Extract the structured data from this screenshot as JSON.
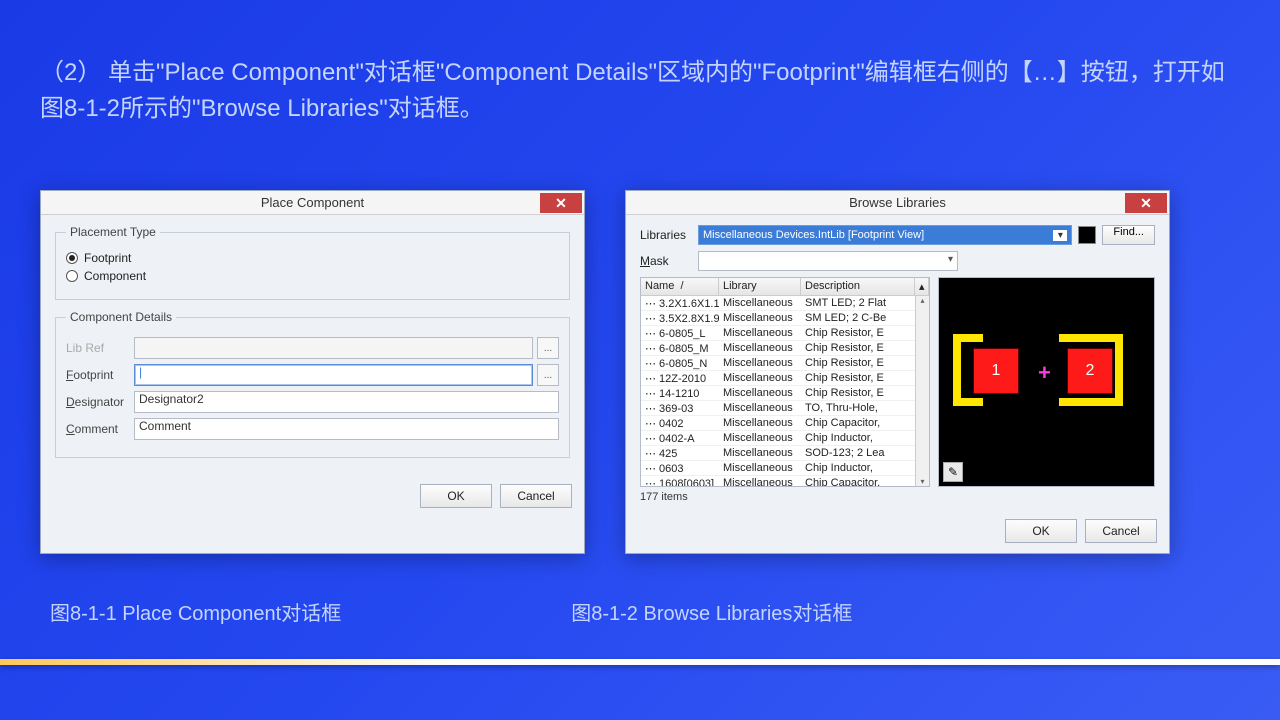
{
  "instruction": "（2） 单击\"Place Component\"对话框\"Component Details\"区域内的\"Footprint\"编辑框右侧的【…】按钮，打开如图8-1-2所示的\"Browse Libraries\"对话框。",
  "caption1": "图8-1-1  Place Component对话框",
  "caption2": "图8-1-2  Browse Libraries对话框",
  "dlg1": {
    "title": "Place Component",
    "fs1": "Placement Type",
    "r1": "Footprint",
    "r2": "Component",
    "fs2": "Component Details",
    "libref_l": "Lib Ref",
    "footprint_l": "Footprint",
    "designator_l": "Designator",
    "designator_v": "Designator2",
    "comment_l": "Comment",
    "comment_v": "Comment",
    "ell": "...",
    "ok": "OK",
    "cancel": "Cancel"
  },
  "dlg2": {
    "title": "Browse Libraries",
    "lib_l": "Libraries",
    "lib_sel": "Miscellaneous Devices.IntLib [Footprint View]",
    "find": "Find...",
    "mask_l": "Mask",
    "col_name": "Name",
    "col_lib": "Library",
    "col_desc": "Description",
    "rows": [
      {
        "n": "3.2X1.6X1.1",
        "l": "Miscellaneous",
        "d": "SMT LED; 2 Flat"
      },
      {
        "n": "3.5X2.8X1.9",
        "l": "Miscellaneous",
        "d": "SM LED; 2 C-Be"
      },
      {
        "n": "6-0805_L",
        "l": "Miscellaneous",
        "d": "Chip Resistor, E"
      },
      {
        "n": "6-0805_M",
        "l": "Miscellaneous",
        "d": "Chip Resistor, E"
      },
      {
        "n": "6-0805_N",
        "l": "Miscellaneous",
        "d": "Chip Resistor, E"
      },
      {
        "n": "12Z-2010",
        "l": "Miscellaneous",
        "d": "Chip Resistor, E"
      },
      {
        "n": "14-1210",
        "l": "Miscellaneous",
        "d": "Chip Resistor, E"
      },
      {
        "n": "369-03",
        "l": "Miscellaneous",
        "d": "TO, Thru-Hole,"
      },
      {
        "n": "0402",
        "l": "Miscellaneous",
        "d": "Chip Capacitor,"
      },
      {
        "n": "0402-A",
        "l": "Miscellaneous",
        "d": "Chip Inductor,"
      },
      {
        "n": "425",
        "l": "Miscellaneous",
        "d": "SOD-123; 2 Lea"
      },
      {
        "n": "0603",
        "l": "Miscellaneous",
        "d": "Chip Inductor,"
      },
      {
        "n": "1608[0603]",
        "l": "Miscellaneous",
        "d": "Chip Capacitor,"
      }
    ],
    "count": "177 items",
    "ok": "OK",
    "cancel": "Cancel",
    "pad1": "1",
    "pad2": "2"
  },
  "colors": {
    "yellow": "#ffe600",
    "red": "#ff1a1a",
    "magenta": "#ff3ae0"
  }
}
